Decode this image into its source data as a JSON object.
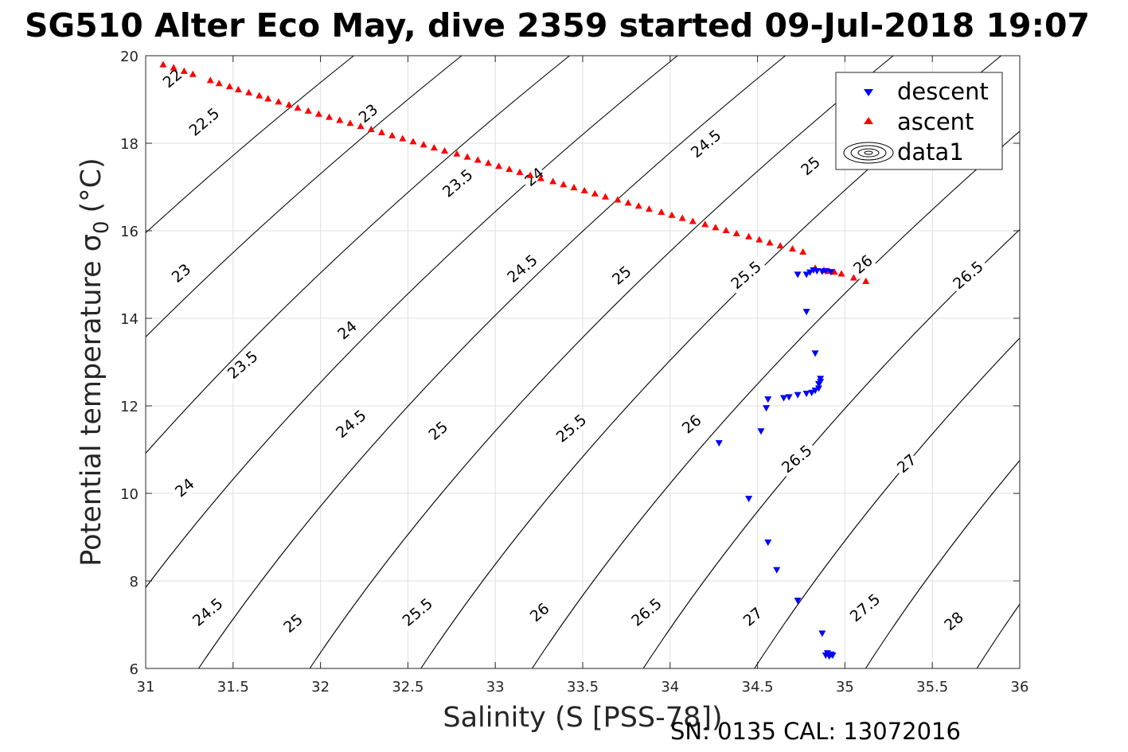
{
  "chart_data": {
    "type": "scatter",
    "title": "SG510 Alter Eco May, dive 2359 started 09-Jul-2018 19:07",
    "xlabel": "Salinity (S [PSS-78])",
    "ylabel_main": "Potential temperature",
    "ylabel_sigma": "σ",
    "ylabel_sub": "0",
    "ylabel_unit": "(°C)",
    "footer": "SN: 0135  CAL: 13072016",
    "xlim": [
      31,
      36
    ],
    "ylim": [
      6,
      20
    ],
    "x_ticks": [
      31,
      31.5,
      32,
      32.5,
      33,
      33.5,
      34,
      34.5,
      35,
      35.5,
      36
    ],
    "x_tick_labels": [
      "31",
      "31.5",
      "32",
      "32.5",
      "33",
      "33.5",
      "34",
      "34.5",
      "35",
      "35.5",
      "36"
    ],
    "y_ticks": [
      6,
      8,
      10,
      12,
      14,
      16,
      18,
      20
    ],
    "y_tick_labels": [
      "6",
      "8",
      "10",
      "12",
      "14",
      "16",
      "18",
      "20"
    ],
    "grid": true,
    "legend_position": "top-right",
    "series": [
      {
        "name": "descent",
        "marker": "triangle-down",
        "color": "#0000ff",
        "points": [
          [
            34.28,
            11.15
          ],
          [
            34.45,
            9.88
          ],
          [
            34.52,
            11.42
          ],
          [
            34.55,
            11.95
          ],
          [
            34.56,
            12.15
          ],
          [
            34.56,
            8.88
          ],
          [
            34.61,
            8.25
          ],
          [
            34.65,
            12.18
          ],
          [
            34.68,
            12.2
          ],
          [
            34.73,
            12.25
          ],
          [
            34.73,
            7.55
          ],
          [
            34.73,
            15.0
          ],
          [
            34.78,
            15.0
          ],
          [
            34.78,
            14.15
          ],
          [
            34.78,
            12.28
          ],
          [
            34.8,
            15.05
          ],
          [
            34.81,
            12.3
          ],
          [
            34.82,
            15.1
          ],
          [
            34.83,
            12.35
          ],
          [
            34.83,
            13.2
          ],
          [
            34.84,
            15.08
          ],
          [
            34.85,
            12.4
          ],
          [
            34.85,
            12.5
          ],
          [
            34.86,
            12.62
          ],
          [
            34.86,
            12.55
          ],
          [
            34.87,
            15.07
          ],
          [
            34.87,
            6.8
          ],
          [
            34.89,
            15.08
          ],
          [
            34.89,
            6.3
          ],
          [
            34.9,
            6.35
          ],
          [
            34.91,
            6.28
          ],
          [
            34.92,
            6.32
          ],
          [
            34.92,
            15.06
          ],
          [
            34.93,
            6.3
          ]
        ]
      },
      {
        "name": "ascent",
        "marker": "triangle-up",
        "color": "#ff0000",
        "points": [
          [
            31.1,
            19.8
          ],
          [
            31.16,
            19.73
          ],
          [
            31.22,
            19.65
          ],
          [
            31.27,
            19.58
          ],
          [
            31.37,
            19.44
          ],
          [
            31.42,
            19.37
          ],
          [
            31.48,
            19.3
          ],
          [
            31.53,
            19.23
          ],
          [
            31.59,
            19.16
          ],
          [
            31.65,
            19.09
          ],
          [
            31.7,
            19.02
          ],
          [
            31.76,
            18.95
          ],
          [
            31.82,
            18.88
          ],
          [
            31.87,
            18.81
          ],
          [
            31.93,
            18.74
          ],
          [
            31.99,
            18.67
          ],
          [
            32.05,
            18.6
          ],
          [
            32.11,
            18.53
          ],
          [
            32.17,
            18.46
          ],
          [
            32.23,
            18.39
          ],
          [
            32.29,
            18.32
          ],
          [
            32.35,
            18.25
          ],
          [
            32.41,
            18.18
          ],
          [
            32.47,
            18.11
          ],
          [
            32.53,
            18.04
          ],
          [
            32.59,
            17.97
          ],
          [
            32.65,
            17.9
          ],
          [
            32.71,
            17.83
          ],
          [
            32.78,
            17.76
          ],
          [
            32.84,
            17.69
          ],
          [
            32.9,
            17.62
          ],
          [
            32.96,
            17.55
          ],
          [
            33.02,
            17.48
          ],
          [
            33.08,
            17.41
          ],
          [
            33.14,
            17.34
          ],
          [
            33.2,
            17.27
          ],
          [
            33.26,
            17.2
          ],
          [
            33.33,
            17.13
          ],
          [
            33.39,
            17.06
          ],
          [
            33.45,
            16.99
          ],
          [
            33.51,
            16.92
          ],
          [
            33.57,
            16.85
          ],
          [
            33.63,
            16.78
          ],
          [
            33.7,
            16.71
          ],
          [
            33.76,
            16.64
          ],
          [
            33.82,
            16.57
          ],
          [
            33.88,
            16.5
          ],
          [
            33.95,
            16.43
          ],
          [
            34.01,
            16.36
          ],
          [
            34.07,
            16.29
          ],
          [
            34.13,
            16.22
          ],
          [
            34.2,
            16.15
          ],
          [
            34.26,
            16.08
          ],
          [
            34.32,
            16.01
          ],
          [
            34.38,
            15.94
          ],
          [
            34.45,
            15.87
          ],
          [
            34.51,
            15.8
          ],
          [
            34.57,
            15.73
          ],
          [
            34.63,
            15.66
          ],
          [
            34.7,
            15.59
          ],
          [
            34.76,
            15.52
          ],
          [
            34.83,
            15.15
          ],
          [
            34.88,
            15.1
          ],
          [
            34.91,
            15.08
          ],
          [
            34.94,
            15.06
          ],
          [
            34.98,
            15.02
          ],
          [
            35.05,
            14.93
          ],
          [
            35.12,
            14.85
          ]
        ]
      },
      {
        "name": "data1",
        "type": "contour",
        "color": "#000000",
        "levels": [
          22,
          22.5,
          23,
          23.5,
          24,
          24.5,
          25,
          25.5,
          26,
          26.5,
          27,
          27.5,
          28
        ]
      }
    ]
  },
  "contour_label_text": {
    "22": "22",
    "22.5": "22.5",
    "23": "23",
    "23.5": "23.5",
    "24": "24",
    "24.5": "24.5",
    "25": "25",
    "25.5": "25.5",
    "26": "26",
    "26.5": "26.5",
    "27": "27",
    "27.5": "27.5",
    "28": "28"
  },
  "contour_labels": [
    [
      31.13,
      19.25,
      22
    ],
    [
      31.28,
      18.15,
      22.5
    ],
    [
      32.25,
      18.45,
      23
    ],
    [
      31.18,
      14.8,
      23
    ],
    [
      31.5,
      12.6,
      23.5
    ],
    [
      32.73,
      16.75,
      23.5
    ],
    [
      33.2,
      17.0,
      24
    ],
    [
      32.13,
      13.5,
      24
    ],
    [
      31.2,
      9.9,
      24
    ],
    [
      34.15,
      17.65,
      24.5
    ],
    [
      33.1,
      14.8,
      24.5
    ],
    [
      32.12,
      11.25,
      24.5
    ],
    [
      31.3,
      6.95,
      24.5
    ],
    [
      34.78,
      17.25,
      25
    ],
    [
      33.7,
      14.75,
      25
    ],
    [
      32.65,
      11.2,
      25
    ],
    [
      31.82,
      6.8,
      25
    ],
    [
      34.38,
      14.65,
      25.5
    ],
    [
      33.38,
      11.15,
      25.5
    ],
    [
      32.5,
      6.95,
      25.5
    ],
    [
      35.08,
      15.0,
      26
    ],
    [
      34.1,
      11.35,
      26
    ],
    [
      33.23,
      7.05,
      26
    ],
    [
      34.67,
      10.45,
      26.5
    ],
    [
      35.65,
      14.65,
      26.5
    ],
    [
      33.81,
      6.95,
      26.5
    ],
    [
      35.33,
      10.45,
      27
    ],
    [
      34.45,
      6.95,
      27
    ],
    [
      35.06,
      7.05,
      27.5
    ],
    [
      35.6,
      6.85,
      28
    ]
  ]
}
